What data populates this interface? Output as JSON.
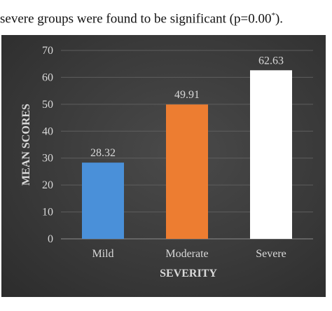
{
  "caption": {
    "text": "severe groups were found to be significant (p=0.00",
    "superscript": "*",
    "suffix": ")."
  },
  "chart_data": {
    "type": "bar",
    "categories": [
      "Mild",
      "Moderate",
      "Severe"
    ],
    "values": [
      28.32,
      49.91,
      62.63
    ],
    "data_labels": [
      "28.32",
      "49.91",
      "62.63"
    ],
    "colors": [
      "#4a90d9",
      "#ed7d31",
      "#ffffff"
    ],
    "xlabel": "SEVERITY",
    "ylabel": "MEAN SCORES",
    "ylim": [
      0,
      70
    ],
    "yticks": [
      "0",
      "10",
      "20",
      "30",
      "40",
      "50",
      "60",
      "70"
    ],
    "grid": true
  }
}
